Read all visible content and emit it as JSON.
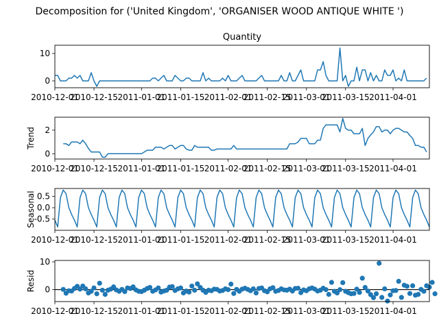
{
  "chart_data": {
    "type": "line",
    "suptitle": "Decomposition for ('United Kingdom', 'ORGANISER WOOD ANTIQUE WHITE ')",
    "colors": {
      "series": "#1f77b4",
      "axis": "#000000"
    },
    "x_start": "2010-12-01",
    "x_tick_labels": [
      "2010-12-01",
      "2010-12-15",
      "2011-01-01",
      "2011-01-15",
      "2011-02-01",
      "2011-02-15",
      "2011-03-01",
      "2011-03-15",
      "2011-04-01"
    ],
    "panels": [
      {
        "name": "observed",
        "type": "line",
        "title": "Quantity",
        "ylabel": "",
        "ylim": [
          -2.5,
          13
        ],
        "yticks": [
          "0",
          "10"
        ],
        "values": [
          2,
          2,
          0,
          0,
          0,
          1,
          1,
          2,
          1,
          2,
          0,
          0,
          0,
          3,
          0,
          -2,
          0,
          0,
          0,
          0,
          0,
          0,
          0,
          0,
          0,
          0,
          0,
          0,
          0,
          0,
          0,
          0,
          0,
          0,
          0,
          1,
          1,
          0,
          1,
          2,
          0,
          0,
          0,
          2,
          1,
          0,
          0,
          1,
          1,
          0,
          0,
          0,
          0,
          3,
          0,
          1,
          0,
          0,
          0,
          0,
          1,
          0,
          2,
          0,
          0,
          0,
          1,
          2,
          0,
          0,
          0,
          0,
          0,
          1,
          2,
          0,
          0,
          0,
          0,
          0,
          0,
          2,
          0,
          0,
          3,
          0,
          0,
          2,
          4,
          0,
          0,
          0,
          0,
          0,
          4,
          4,
          7,
          2,
          0,
          0,
          0,
          0,
          12,
          0,
          2,
          -2,
          0,
          0,
          5,
          0,
          4,
          4,
          0,
          3,
          0,
          2,
          0,
          0,
          4,
          2,
          2,
          4,
          0,
          1,
          0,
          4,
          0,
          0,
          0,
          0,
          0,
          0,
          0,
          1
        ]
      },
      {
        "name": "trend",
        "type": "line",
        "title": "",
        "ylabel": "Trend",
        "ylim": [
          -0.45,
          3.1
        ],
        "yticks": [
          "0",
          "2"
        ],
        "offset": 3,
        "values": [
          0.85,
          0.85,
          0.7,
          1.0,
          1.0,
          1.0,
          0.85,
          1.15,
          0.85,
          0.45,
          0.15,
          0.15,
          0.15,
          0.15,
          -0.3,
          -0.3,
          0.0,
          0.0,
          0.0,
          0.0,
          0.0,
          0.0,
          0.0,
          0.0,
          0.0,
          0.0,
          0.0,
          0.0,
          0.0,
          0.15,
          0.3,
          0.3,
          0.3,
          0.55,
          0.55,
          0.55,
          0.4,
          0.55,
          0.7,
          0.7,
          0.4,
          0.55,
          0.7,
          0.7,
          0.4,
          0.3,
          0.3,
          0.7,
          0.55,
          0.55,
          0.55,
          0.55,
          0.55,
          0.3,
          0.3,
          0.4,
          0.4,
          0.4,
          0.4,
          0.4,
          0.4,
          0.7,
          0.4,
          0.4,
          0.4,
          0.4,
          0.4,
          0.4,
          0.4,
          0.4,
          0.4,
          0.4,
          0.4,
          0.4,
          0.4,
          0.4,
          0.4,
          0.4,
          0.4,
          0.4,
          0.4,
          0.85,
          0.85,
          0.85,
          1.0,
          1.3,
          1.3,
          1.3,
          0.85,
          0.85,
          0.85,
          1.15,
          1.15,
          2.15,
          2.45,
          2.45,
          2.45,
          2.45,
          2.45,
          1.85,
          3.0,
          2.15,
          2.0,
          2.0,
          1.7,
          1.7,
          1.7,
          2.15,
          0.7,
          1.3,
          1.6,
          1.85,
          2.3,
          2.3,
          1.85,
          2.0,
          2.0,
          1.7,
          2.0,
          2.15,
          2.15,
          2.0,
          1.85,
          1.85,
          1.55,
          1.3,
          0.7,
          0.7,
          0.55,
          0.55,
          0.15
        ]
      },
      {
        "name": "seasonal",
        "type": "line",
        "title": "",
        "ylabel": "Seasonal",
        "ylim": [
          -1.0,
          0.85
        ],
        "yticks": [
          "0.5",
          "0.0",
          "-0.5"
        ],
        "period": 7,
        "pattern": [
          -0.3,
          -0.55,
          -0.85,
          0.45,
          0.78,
          0.62,
          0.0
        ],
        "phase": 1
      },
      {
        "name": "resid",
        "type": "scatter",
        "title": "",
        "ylabel": "Resid",
        "ylim": [
          -4.3,
          10.5
        ],
        "yticks": [
          "0",
          "10"
        ],
        "offset": 3,
        "values": [
          0.1,
          -1.3,
          -0.4,
          -0.5,
          0.4,
          1.2,
          0.2,
          1.3,
          0.3,
          -1.2,
          -0.6,
          0.6,
          -1.5,
          2.3,
          -0.2,
          -1.7,
          -0.2,
          0.2,
          1.0,
          -0.1,
          -0.6,
          0.1,
          -0.7,
          0.6,
          0.4,
          1.0,
          -0.1,
          -0.6,
          -0.7,
          -0.2,
          0.4,
          0.8,
          -0.6,
          -0.1,
          0.6,
          -0.9,
          -0.5,
          -0.2,
          0.9,
          1.1,
          -0.3,
          0.3,
          0.6,
          -1.2,
          -0.5,
          -0.9,
          1.3,
          -0.2,
          2.1,
          0.8,
          -0.2,
          -1.0,
          -0.2,
          -0.4,
          0.2,
          0.1,
          -0.5,
          -0.3,
          0.3,
          0.0,
          2.0,
          -1.4,
          0.1,
          -0.6,
          0.2,
          0.5,
          0.1,
          -0.4,
          0.3,
          -1.2,
          0.4,
          0.6,
          -0.4,
          -0.8,
          0.3,
          0.7,
          -0.6,
          -0.3,
          0.3,
          -0.1,
          -0.2,
          0.2,
          -0.5,
          0.4,
          0.5,
          -1.1,
          -0.1,
          -0.4,
          0.3,
          0.6,
          0.2,
          -0.5,
          -0.2,
          0.5,
          0.0,
          -1.7,
          2.6,
          -0.6,
          -1.2,
          0.0,
          2.5,
          -0.6,
          -1.1,
          -1.5,
          -1.4,
          0.2,
          -1.0,
          4.1,
          0.8,
          -0.5,
          -1.8,
          -2.9,
          -1.5,
          9.5,
          -2.8,
          0.3,
          -4.1,
          -1.9,
          -0.4,
          -0.3,
          3.0,
          -2.8,
          1.6,
          1.2,
          -1.4,
          1.4,
          -2.0,
          -1.7,
          0.1,
          -0.6,
          1.4,
          0.9,
          2.6,
          -1.5
        ]
      }
    ]
  }
}
